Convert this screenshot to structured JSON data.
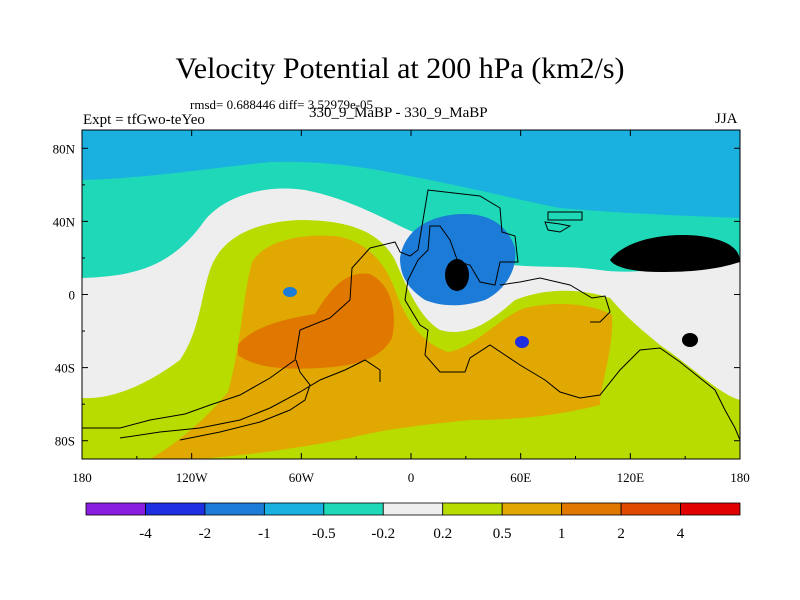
{
  "chart_data": {
    "type": "heatmap",
    "title": "Velocity Potential at 200 hPa (km2/s)",
    "stats_text": "rmsd= 0.688446 diff= 3.52979e-05",
    "experiment": "Expt = tfGwo-teYeo",
    "cases": "330_9_MaBP - 330_9_MaBP",
    "season": "JJA",
    "x_ticks": [
      "180",
      "120W",
      "60W",
      "0",
      "60E",
      "120E",
      "180"
    ],
    "x_tick_values": [
      -180,
      -120,
      -60,
      0,
      60,
      120,
      180
    ],
    "y_ticks": [
      "80N",
      "40N",
      "0",
      "40S",
      "80S"
    ],
    "y_tick_values": [
      80,
      40,
      0,
      -40,
      -80
    ],
    "xlim": [
      -180,
      180
    ],
    "ylim": [
      -90,
      90
    ],
    "colorbar": {
      "labels": [
        "-4",
        "-2",
        "-1",
        "-0.5",
        "-0.2",
        "0.2",
        "0.5",
        "1",
        "2",
        "4"
      ],
      "colors": [
        "#8a1ee0",
        "#1f2ee0",
        "#1c7bd6",
        "#1ab0e0",
        "#1ed8b8",
        "#eeeeee",
        "#b8dc00",
        "#e0a800",
        "#e07800",
        "#e04a00",
        "#e00000"
      ]
    },
    "field_regions": [
      {
        "name": "high-latitude north",
        "level": "-0.5",
        "color": "#1ab0e0"
      },
      {
        "name": "northern mid-latitude band",
        "level": "-0.2",
        "color": "#1ed8b8"
      },
      {
        "name": "near-zero band",
        "level": "0.2",
        "color": "#eeeeee"
      },
      {
        "name": "subtropical ring",
        "level": "0.5",
        "color": "#b8dc00"
      },
      {
        "name": "southern hemisphere bulk",
        "level": "1",
        "color": "#e0a800"
      },
      {
        "name": "atlantic maximum",
        "level": "2",
        "color": "#e07800"
      },
      {
        "name": "tropical minimum rim",
        "level": "-1",
        "color": "#1c7bd6"
      },
      {
        "name": "tropical minimum core",
        "level": "-2",
        "color": "#1f2ee0"
      },
      {
        "name": "north pacific minimum",
        "level": "-1",
        "color": "#1c7bd6"
      }
    ]
  }
}
